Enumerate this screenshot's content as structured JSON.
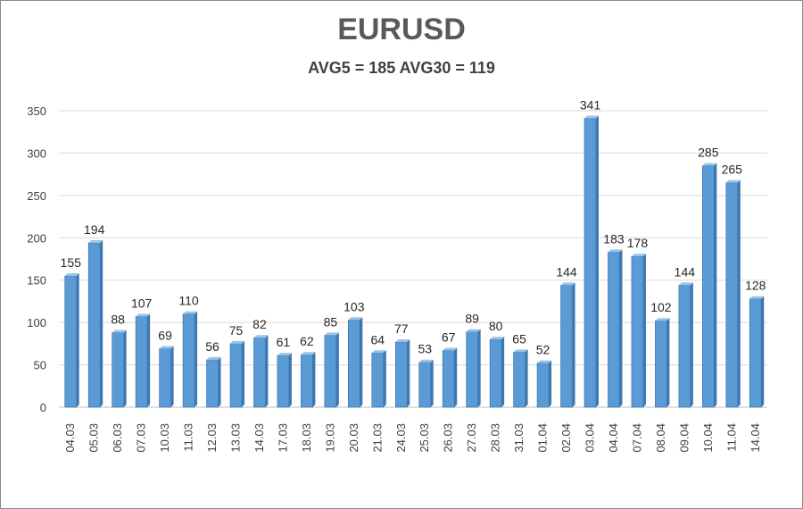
{
  "chart_data": {
    "type": "bar",
    "title": "EURUSD",
    "subtitle": "AVG5 = 185 AVG30 = 119",
    "xlabel": "",
    "ylabel": "",
    "ylim": [
      0,
      350
    ],
    "yticks": [
      0,
      50,
      100,
      150,
      200,
      250,
      300,
      350
    ],
    "grid": true,
    "categories": [
      "04.03",
      "05.03",
      "06.03",
      "07.03",
      "10.03",
      "11.03",
      "12.03",
      "13.03",
      "14.03",
      "17.03",
      "18.03",
      "19.03",
      "20.03",
      "21.03",
      "24.03",
      "25.03",
      "26.03",
      "27.03",
      "28.03",
      "31.03",
      "01.04",
      "02.04",
      "03.04",
      "04.04",
      "07.04",
      "08.04",
      "09.04",
      "10.04",
      "11.04",
      "14.04"
    ],
    "values": [
      155,
      194,
      88,
      107,
      69,
      110,
      56,
      75,
      82,
      61,
      62,
      85,
      103,
      64,
      77,
      53,
      67,
      89,
      80,
      65,
      52,
      144,
      341,
      183,
      178,
      102,
      144,
      285,
      265,
      128
    ],
    "bar_color": "#5b9bd5",
    "bar_side_color": "#3e78b0",
    "bar_top_color": "#9cc3e8"
  }
}
